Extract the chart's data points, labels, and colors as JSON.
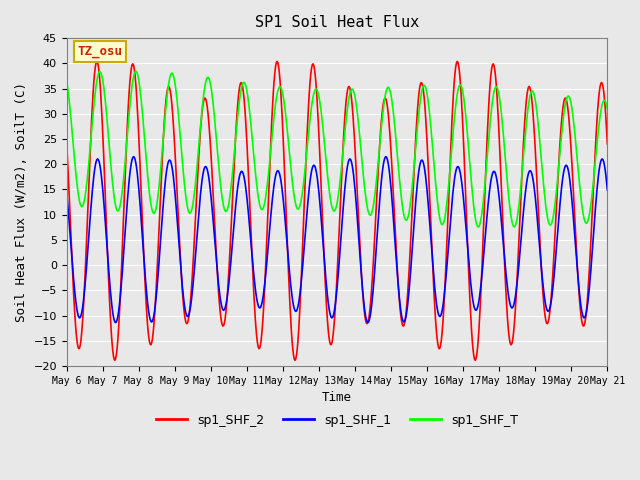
{
  "title": "SP1 Soil Heat Flux",
  "xlabel": "Time",
  "ylabel": "Soil Heat Flux (W/m2), SoilT (C)",
  "ylim": [
    -20,
    45
  ],
  "xlim_days": [
    0,
    15
  ],
  "bg_color": "#e8e8e8",
  "plot_bg_color": "#e8e8e8",
  "grid_color": "white",
  "tz_label": "TZ_osu",
  "tz_box_facecolor": "#ffffcc",
  "tz_box_edgecolor": "#ccaa00",
  "tz_text_color": "#cc2200",
  "legend_labels": [
    "sp1_SHF_2",
    "sp1_SHF_1",
    "sp1_SHF_T"
  ],
  "legend_colors": [
    "red",
    "blue",
    "lime"
  ],
  "line_colors": {
    "shf2": "red",
    "shf1": "blue",
    "shfT": "lime"
  },
  "xtick_labels": [
    "May 6",
    "May 7",
    "May 8",
    "May 9",
    "May 10",
    "May 11",
    "May 12",
    "May 13",
    "May 14",
    "May 15",
    "May 16",
    "May 17",
    "May 18",
    "May 19",
    "May 20",
    "May 21"
  ],
  "period_hours": 24,
  "num_days": 15,
  "shf2_amplitude_base": 26,
  "shf2_min_base": -12,
  "shf1_amplitude_base": 15,
  "shf1_min_base": -10,
  "shfT_amplitude_base": 13,
  "shfT_min_base": 18,
  "shfT_max_base": 32,
  "font_family": "monospace"
}
